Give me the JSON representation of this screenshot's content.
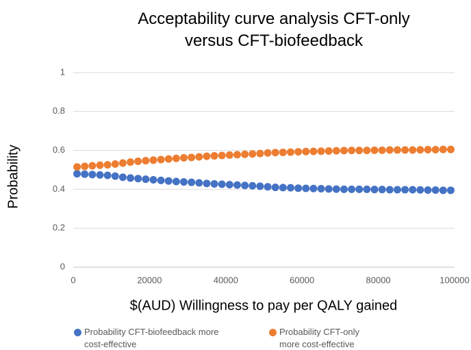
{
  "chart_data": {
    "type": "scatter",
    "title": "Acceptability curve analysis CFT-only versus CFT-biofeedback",
    "xlabel": "$(AUD) Willingness to pay per QALY gained",
    "ylabel": "Probability",
    "x": [
      1000,
      3000,
      5000,
      7000,
      9000,
      11000,
      13000,
      15000,
      17000,
      19000,
      21000,
      23000,
      25000,
      27000,
      29000,
      31000,
      33000,
      35000,
      37000,
      39000,
      41000,
      43000,
      45000,
      47000,
      49000,
      51000,
      53000,
      55000,
      57000,
      59000,
      61000,
      63000,
      65000,
      67000,
      69000,
      71000,
      73000,
      75000,
      77000,
      79000,
      81000,
      83000,
      85000,
      87000,
      89000,
      91000,
      93000,
      95000,
      97000,
      99000
    ],
    "series": [
      {
        "name": "Probability CFT-biofeedback more cost-effective",
        "color": "#4472c4",
        "values": [
          0.48,
          0.478,
          0.476,
          0.474,
          0.472,
          0.468,
          0.462,
          0.458,
          0.455,
          0.452,
          0.449,
          0.446,
          0.443,
          0.44,
          0.438,
          0.436,
          0.433,
          0.43,
          0.428,
          0.426,
          0.424,
          0.422,
          0.42,
          0.418,
          0.416,
          0.413,
          0.41,
          0.409,
          0.408,
          0.406,
          0.405,
          0.404,
          0.403,
          0.402,
          0.401,
          0.4,
          0.4,
          0.4,
          0.4,
          0.399,
          0.399,
          0.398,
          0.398,
          0.398,
          0.398,
          0.397,
          0.396,
          0.396,
          0.395,
          0.395
        ]
      },
      {
        "name": "Probability CFT-only more cost-effective",
        "color": "#ed7d31",
        "values": [
          0.515,
          0.518,
          0.521,
          0.524,
          0.526,
          0.53,
          0.535,
          0.54,
          0.544,
          0.547,
          0.55,
          0.553,
          0.556,
          0.559,
          0.562,
          0.564,
          0.567,
          0.57,
          0.572,
          0.574,
          0.576,
          0.578,
          0.58,
          0.582,
          0.584,
          0.587,
          0.589,
          0.59,
          0.591,
          0.593,
          0.594,
          0.595,
          0.596,
          0.597,
          0.598,
          0.599,
          0.6,
          0.6,
          0.6,
          0.601,
          0.601,
          0.602,
          0.602,
          0.602,
          0.602,
          0.603,
          0.604,
          0.604,
          0.605,
          0.605
        ]
      }
    ],
    "xlim": [
      0,
      100000
    ],
    "xticks": [
      0,
      20000,
      40000,
      60000,
      80000,
      100000
    ],
    "ylim": [
      0,
      1
    ],
    "yticks": [
      0,
      0.2,
      0.4,
      0.6,
      0.8,
      1
    ],
    "grid": true,
    "legend": "bottom"
  }
}
